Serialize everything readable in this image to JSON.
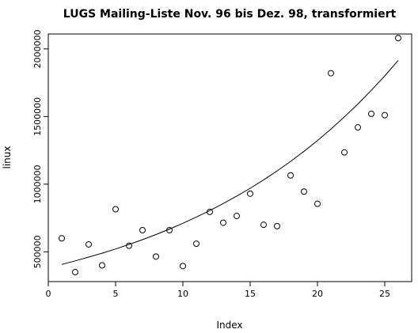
{
  "chart_data": {
    "type": "scatter",
    "title": "LUGS Mailing-Liste Nov. 96 bis Dez. 98, transformiert",
    "xlabel": "Index",
    "ylabel": "linux",
    "xlim": [
      0,
      27
    ],
    "ylim": [
      280000,
      2110000
    ],
    "x_ticks": [
      0,
      5,
      10,
      15,
      20,
      25
    ],
    "y_ticks": [
      500000,
      1000000,
      1500000,
      2000000
    ],
    "x_tick_labels": [
      "0",
      "5",
      "10",
      "15",
      "20",
      "25"
    ],
    "y_tick_labels": [
      "500000",
      "1000000",
      "1500000",
      "2000000"
    ],
    "grid": false,
    "legend": "none",
    "series": [
      {
        "marker": "open-circle",
        "x": [
          1,
          2,
          3,
          4,
          5,
          6,
          7,
          8,
          9,
          10,
          11,
          12,
          13,
          14,
          15,
          16,
          17,
          18,
          19,
          20,
          21,
          22,
          23,
          24,
          25,
          26
        ],
        "y": [
          600000,
          350000,
          555000,
          400000,
          815000,
          545000,
          660000,
          465000,
          660000,
          395000,
          560000,
          795000,
          715000,
          765000,
          930000,
          700000,
          690000,
          1065000,
          945000,
          855000,
          1820000,
          1235000,
          1420000,
          1520000,
          1510000,
          2080000
        ]
      },
      {
        "marker": "line",
        "x": [
          1,
          2,
          3,
          4,
          5,
          6,
          7,
          8,
          9,
          10,
          11,
          12,
          13,
          14,
          15,
          16,
          17,
          18,
          19,
          20,
          21,
          22,
          23,
          24,
          25,
          26
        ],
        "y": [
          407000,
          433000,
          461000,
          490000,
          521000,
          555000,
          590000,
          628000,
          668000,
          711000,
          757000,
          805000,
          857000,
          912000,
          970000,
          1032000,
          1098000,
          1168000,
          1243000,
          1322000,
          1407000,
          1497000,
          1592000,
          1694000,
          1800000,
          1915000
        ]
      }
    ]
  }
}
